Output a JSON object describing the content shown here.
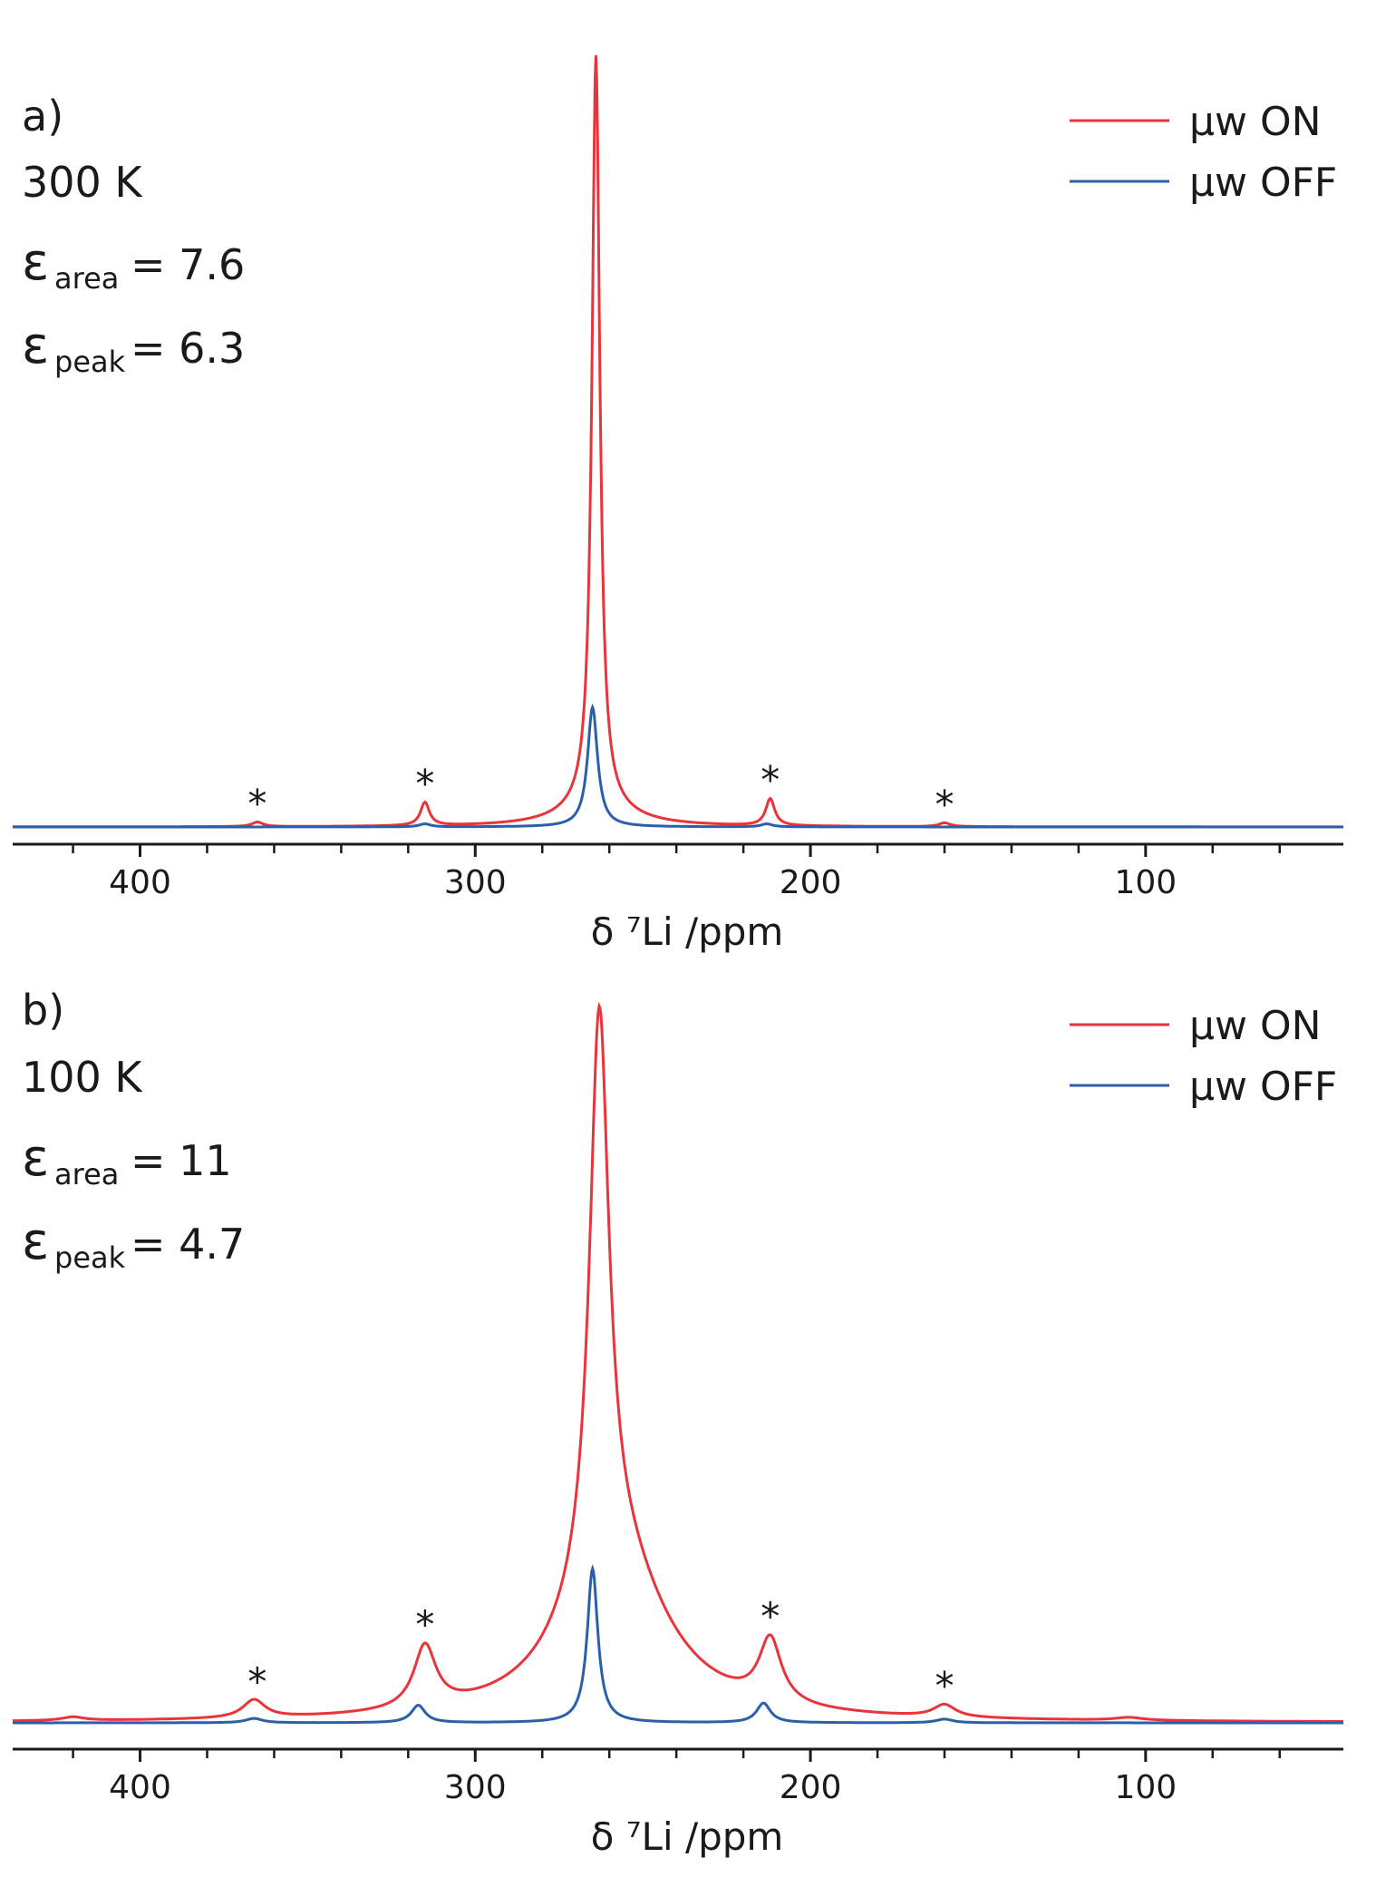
{
  "chart_data": [
    {
      "type": "line",
      "panel": "a)",
      "annotations": {
        "panel_label": "a)",
        "temperature": "300 K",
        "eps_area_sym": "ε",
        "eps_area_sub": "area",
        "eps_area_val": "= 7.6",
        "eps_peak_sym": "ε",
        "eps_peak_sub": "peak",
        "eps_peak_val": "= 6.3"
      },
      "xlabel": "δ ⁷Li /ppm",
      "xlim": [
        438,
        41
      ],
      "ylim": [
        0,
        1
      ],
      "x_ticks": [
        400,
        300,
        200,
        100
      ],
      "x_ticks_minor": [
        420,
        380,
        360,
        340,
        320,
        280,
        260,
        240,
        220,
        180,
        160,
        140,
        120,
        80,
        60
      ],
      "legend": {
        "position": "top-right",
        "entries": [
          "μw ON",
          "μw OFF"
        ]
      },
      "spinning_sideband_marker": "*",
      "sideband_positions": [
        365,
        315,
        212,
        160
      ],
      "series": [
        {
          "name": "μw ON",
          "color": "#e8343a",
          "baseline": 0.0,
          "peaks": [
            {
              "center": 264,
              "height": 1.0,
              "width": 1.4
            },
            {
              "center": 264,
              "height": 0.025,
              "width": 12
            },
            {
              "center": 315,
              "height": 0.031,
              "width": 1.6
            },
            {
              "center": 212,
              "height": 0.036,
              "width": 1.6
            },
            {
              "center": 365,
              "height": 0.006,
              "width": 2
            },
            {
              "center": 160,
              "height": 0.005,
              "width": 2
            }
          ]
        },
        {
          "name": "μw OFF",
          "color": "#2b5fa8",
          "baseline": 0.0,
          "peaks": [
            {
              "center": 265,
              "height": 0.159,
              "width": 1.8
            },
            {
              "center": 315,
              "height": 0.004,
              "width": 2
            },
            {
              "center": 213,
              "height": 0.004,
              "width": 2
            }
          ]
        }
      ]
    },
    {
      "type": "line",
      "panel": "b)",
      "annotations": {
        "panel_label": "b)",
        "temperature": "100 K",
        "eps_area_sym": "ε",
        "eps_area_sub": "area",
        "eps_area_val": "= 11",
        "eps_peak_sym": "ε",
        "eps_peak_sub": "peak",
        "eps_peak_val": "= 4.7"
      },
      "xlabel": "δ ⁷Li /ppm",
      "xlim": [
        438,
        41
      ],
      "ylim": [
        0,
        1
      ],
      "x_ticks": [
        400,
        300,
        200,
        100
      ],
      "x_ticks_minor": [
        420,
        380,
        360,
        340,
        320,
        280,
        260,
        240,
        220,
        180,
        160,
        140,
        120,
        80,
        60
      ],
      "legend": {
        "position": "top-right",
        "entries": [
          "μw ON",
          "μw OFF"
        ]
      },
      "spinning_sideband_marker": "*",
      "sideband_positions": [
        365,
        315,
        212,
        160
      ],
      "series": [
        {
          "name": "μw ON",
          "color": "#e8343a",
          "baseline": 0.0,
          "peaks": [
            {
              "center": 263,
              "height": 0.78,
              "width": 3.5
            },
            {
              "center": 258,
              "height": 0.22,
              "width": 18
            },
            {
              "center": 315,
              "height": 0.086,
              "width": 4
            },
            {
              "center": 212,
              "height": 0.088,
              "width": 4
            },
            {
              "center": 366,
              "height": 0.025,
              "width": 4
            },
            {
              "center": 160,
              "height": 0.017,
              "width": 4
            },
            {
              "center": 420,
              "height": 0.005,
              "width": 4
            },
            {
              "center": 105,
              "height": 0.004,
              "width": 5
            }
          ]
        },
        {
          "name": "μw OFF",
          "color": "#2b5fa8",
          "baseline": 0.0,
          "peaks": [
            {
              "center": 265,
              "height": 0.212,
              "width": 1.9
            },
            {
              "center": 317,
              "height": 0.024,
              "width": 2.5
            },
            {
              "center": 214,
              "height": 0.027,
              "width": 2.5
            },
            {
              "center": 366,
              "height": 0.006,
              "width": 3
            },
            {
              "center": 160,
              "height": 0.005,
              "width": 3
            }
          ]
        }
      ]
    }
  ]
}
